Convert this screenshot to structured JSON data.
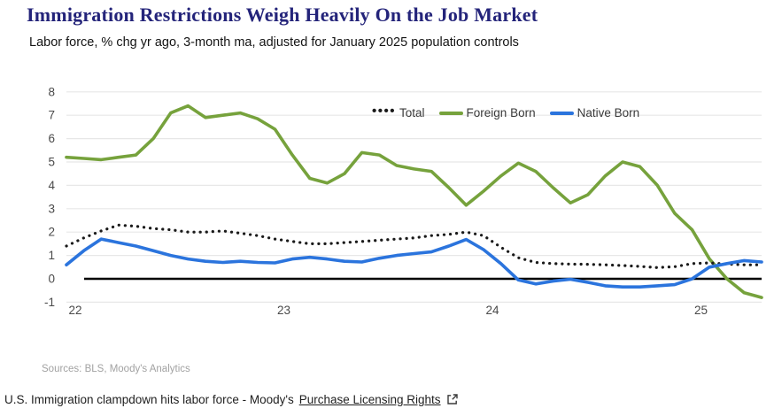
{
  "header": {
    "title": "Immigration Restrictions Weigh Heavily On the Job Market",
    "subtitle": "Labor force, % chg yr ago, 3-month ma, adjusted for January 2025 population controls"
  },
  "legend": [
    {
      "label": "Total",
      "marker": "dotted-line",
      "color": "#1a1a1a"
    },
    {
      "label": "Foreign Born",
      "marker": "solid-line",
      "color": "#76a23c"
    },
    {
      "label": "Native Born",
      "marker": "solid-line",
      "color": "#2b74dd"
    }
  ],
  "chart_data": {
    "type": "line",
    "title": "Immigration Restrictions Weigh Heavily On the Job Market",
    "ylabel": "Labor force, % chg yr ago, 3-month ma",
    "ylim": [
      -1,
      8
    ],
    "yticks": [
      8,
      7,
      6,
      5,
      4,
      3,
      2,
      1,
      0,
      -1
    ],
    "grid": true,
    "zero_line": true,
    "legend_position": "top-right-inside",
    "x_tick_labels": [
      "22",
      "23",
      "24",
      "25"
    ],
    "x_tick_month_index": [
      0,
      12,
      24,
      36
    ],
    "x_months": [
      "2022-01",
      "2022-02",
      "2022-03",
      "2022-04",
      "2022-05",
      "2022-06",
      "2022-07",
      "2022-08",
      "2022-09",
      "2022-10",
      "2022-11",
      "2022-12",
      "2023-01",
      "2023-02",
      "2023-03",
      "2023-04",
      "2023-05",
      "2023-06",
      "2023-07",
      "2023-08",
      "2023-09",
      "2023-10",
      "2023-11",
      "2023-12",
      "2024-01",
      "2024-02",
      "2024-03",
      "2024-04",
      "2024-05",
      "2024-06",
      "2024-07",
      "2024-08",
      "2024-09",
      "2024-10",
      "2024-11",
      "2024-12",
      "2025-01",
      "2025-02",
      "2025-03",
      "2025-04",
      "2025-05"
    ],
    "draw_order": [
      1,
      0,
      2
    ],
    "series": [
      {
        "name": "Total",
        "style": "dotted",
        "color": "#1a1a1a",
        "values": [
          1.4,
          1.75,
          2.05,
          2.3,
          2.25,
          2.15,
          2.1,
          2.0,
          2.0,
          2.05,
          1.95,
          1.85,
          1.7,
          1.6,
          1.5,
          1.5,
          1.55,
          1.6,
          1.65,
          1.7,
          1.75,
          1.85,
          1.9,
          2.0,
          1.85,
          1.35,
          0.9,
          0.7,
          0.65,
          0.63,
          0.62,
          0.6,
          0.57,
          0.53,
          0.48,
          0.52,
          0.65,
          0.68,
          0.63,
          0.6,
          0.6
        ]
      },
      {
        "name": "Foreign Born",
        "style": "solid",
        "color": "#76a23c",
        "values": [
          5.2,
          5.15,
          5.1,
          5.2,
          5.3,
          6.0,
          7.1,
          7.4,
          6.9,
          7.0,
          7.1,
          6.85,
          6.4,
          5.3,
          4.3,
          4.1,
          4.5,
          5.4,
          5.3,
          4.85,
          4.7,
          4.6,
          3.9,
          3.15,
          3.75,
          4.4,
          4.95,
          4.6,
          3.9,
          3.25,
          3.6,
          4.4,
          5.0,
          4.8,
          4.0,
          2.8,
          2.1,
          0.85,
          0.0,
          -0.6,
          -0.8
        ]
      },
      {
        "name": "Native Born",
        "style": "solid",
        "color": "#2b74dd",
        "values": [
          0.6,
          1.2,
          1.7,
          1.55,
          1.4,
          1.2,
          1.0,
          0.85,
          0.75,
          0.7,
          0.75,
          0.7,
          0.68,
          0.85,
          0.92,
          0.85,
          0.75,
          0.72,
          0.88,
          1.0,
          1.08,
          1.15,
          1.4,
          1.68,
          1.25,
          0.65,
          -0.05,
          -0.22,
          -0.1,
          -0.02,
          -0.15,
          -0.3,
          -0.35,
          -0.35,
          -0.3,
          -0.25,
          0.0,
          0.5,
          0.65,
          0.78,
          0.72
        ]
      }
    ],
    "colors": {
      "grid": "#e7e7e7",
      "zero_line": "#000000",
      "axis_text": "#4a4a4a"
    }
  },
  "footer": {
    "sources": "Sources: BLS, Moody's Analytics"
  },
  "caption": {
    "text": "U.S. Immigration clampdown hits labor force - Moody's",
    "link_label": "Purchase Licensing Rights",
    "icon": "open-in-new-icon"
  }
}
